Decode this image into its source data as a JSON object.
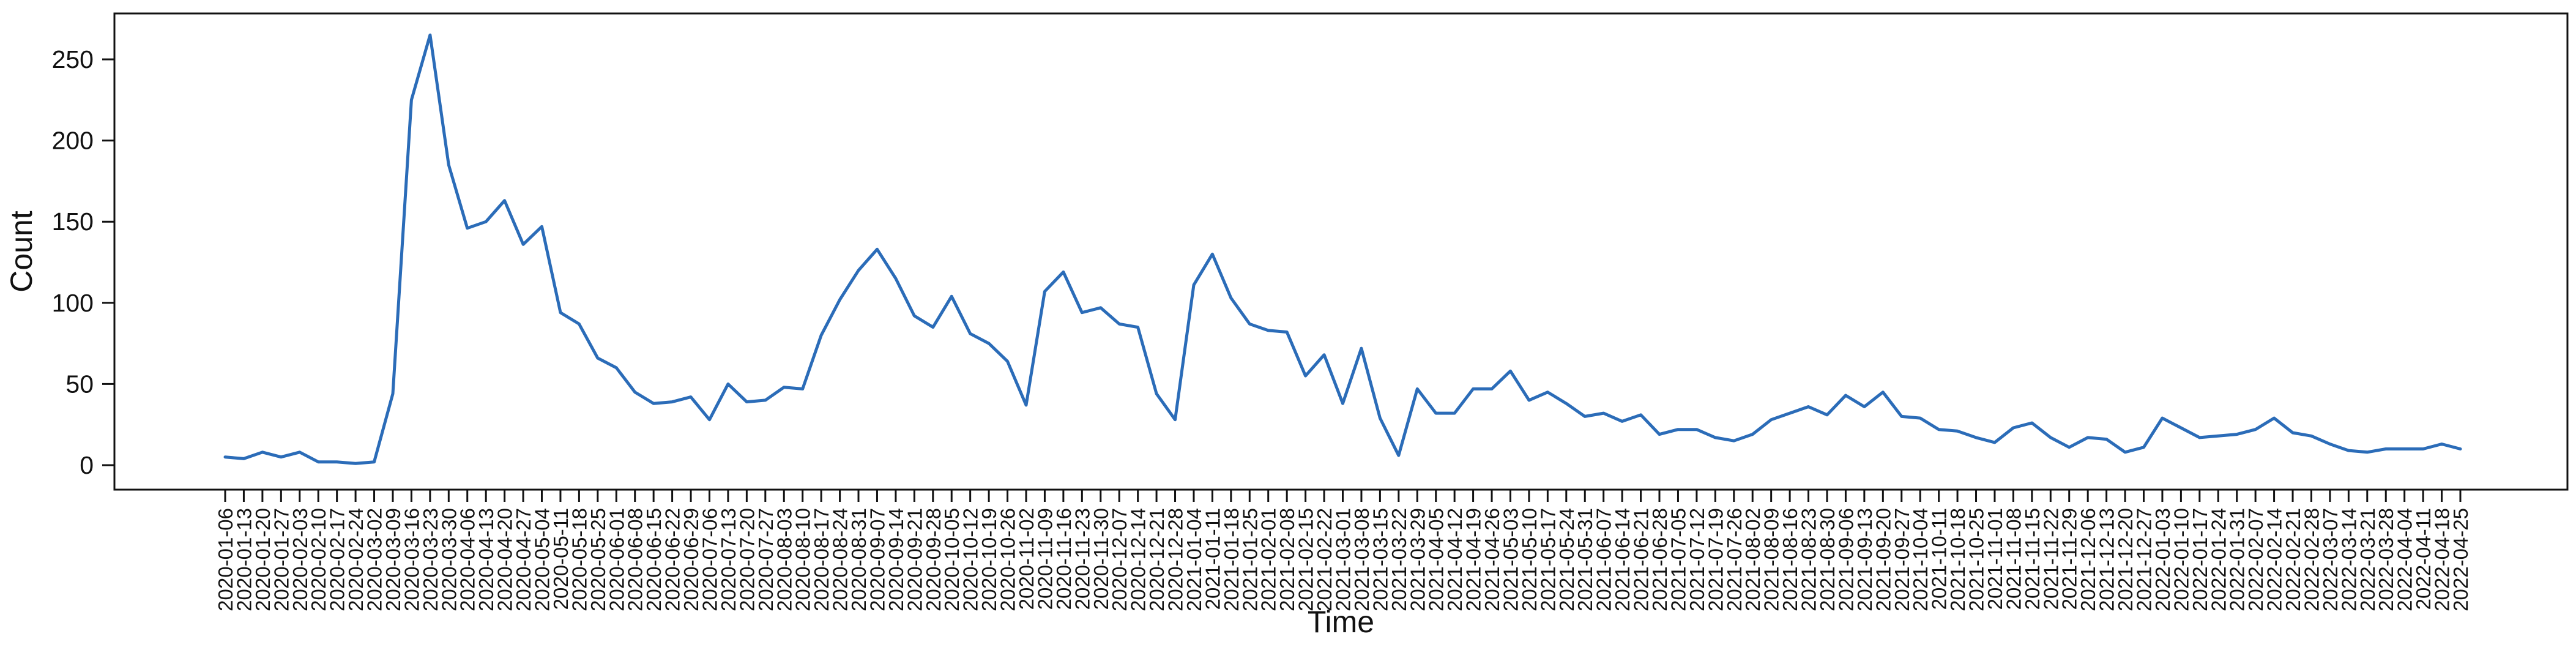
{
  "figure": {
    "background": "#ffffff"
  },
  "chart_data": {
    "type": "line",
    "title": "",
    "xlabel": "Time",
    "ylabel": "Count",
    "legend": null,
    "grid": false,
    "line_color": "#2b6cb8",
    "axis_color": "#111111",
    "ylim": [
      -15,
      278
    ],
    "yticks": [
      0,
      50,
      100,
      150,
      200,
      250
    ],
    "x": [
      "2020-01-06",
      "2020-01-13",
      "2020-01-20",
      "2020-01-27",
      "2020-02-03",
      "2020-02-10",
      "2020-02-17",
      "2020-02-24",
      "2020-03-02",
      "2020-03-09",
      "2020-03-16",
      "2020-03-23",
      "2020-03-30",
      "2020-04-06",
      "2020-04-13",
      "2020-04-20",
      "2020-04-27",
      "2020-05-04",
      "2020-05-11",
      "2020-05-18",
      "2020-05-25",
      "2020-06-01",
      "2020-06-08",
      "2020-06-15",
      "2020-06-22",
      "2020-06-29",
      "2020-07-06",
      "2020-07-13",
      "2020-07-20",
      "2020-07-27",
      "2020-08-03",
      "2020-08-10",
      "2020-08-17",
      "2020-08-24",
      "2020-08-31",
      "2020-09-07",
      "2020-09-14",
      "2020-09-21",
      "2020-09-28",
      "2020-10-05",
      "2020-10-12",
      "2020-10-19",
      "2020-10-26",
      "2020-11-02",
      "2020-11-09",
      "2020-11-16",
      "2020-11-23",
      "2020-11-30",
      "2020-12-07",
      "2020-12-14",
      "2020-12-21",
      "2020-12-28",
      "2021-01-04",
      "2021-01-11",
      "2021-01-18",
      "2021-01-25",
      "2021-02-01",
      "2021-02-08",
      "2021-02-15",
      "2021-02-22",
      "2021-03-01",
      "2021-03-08",
      "2021-03-15",
      "2021-03-22",
      "2021-03-29",
      "2021-04-05",
      "2021-04-12",
      "2021-04-19",
      "2021-04-26",
      "2021-05-03",
      "2021-05-10",
      "2021-05-17",
      "2021-05-24",
      "2021-05-31",
      "2021-06-07",
      "2021-06-14",
      "2021-06-21",
      "2021-06-28",
      "2021-07-05",
      "2021-07-12",
      "2021-07-19",
      "2021-07-26",
      "2021-08-02",
      "2021-08-09",
      "2021-08-16",
      "2021-08-23",
      "2021-08-30",
      "2021-09-06",
      "2021-09-13",
      "2021-09-20",
      "2021-09-27",
      "2021-10-04",
      "2021-10-11",
      "2021-10-18",
      "2021-10-25",
      "2021-11-01",
      "2021-11-08",
      "2021-11-15",
      "2021-11-22",
      "2021-11-29",
      "2021-12-06",
      "2021-12-13",
      "2021-12-20",
      "2021-12-27",
      "2022-01-03",
      "2022-01-10",
      "2022-01-17",
      "2022-01-24",
      "2022-01-31",
      "2022-02-07",
      "2022-02-14",
      "2022-02-21",
      "2022-02-28",
      "2022-03-07",
      "2022-03-14",
      "2022-03-21",
      "2022-03-28",
      "2022-04-04",
      "2022-04-11",
      "2022-04-18",
      "2022-04-25"
    ],
    "values": [
      5,
      4,
      8,
      5,
      8,
      2,
      2,
      1,
      2,
      44,
      225,
      265,
      185,
      146,
      150,
      163,
      136,
      147,
      94,
      87,
      66,
      60,
      45,
      38,
      39,
      42,
      28,
      50,
      39,
      40,
      48,
      47,
      80,
      102,
      120,
      133,
      115,
      92,
      85,
      104,
      81,
      75,
      64,
      37,
      107,
      119,
      94,
      97,
      87,
      85,
      44,
      28,
      111,
      130,
      103,
      87,
      83,
      82,
      55,
      68,
      38,
      72,
      29,
      6,
      47,
      32,
      32,
      47,
      47,
      58,
      40,
      45,
      38,
      30,
      32,
      27,
      31,
      19,
      22,
      22,
      17,
      15,
      19,
      28,
      32,
      36,
      31,
      43,
      36,
      45,
      30,
      29,
      22,
      21,
      17,
      14,
      23,
      26,
      17,
      11,
      17,
      16,
      8,
      11,
      29,
      23,
      17,
      18,
      19,
      22,
      29,
      20,
      18,
      13,
      9,
      8,
      10,
      10,
      10,
      13,
      10
    ]
  }
}
